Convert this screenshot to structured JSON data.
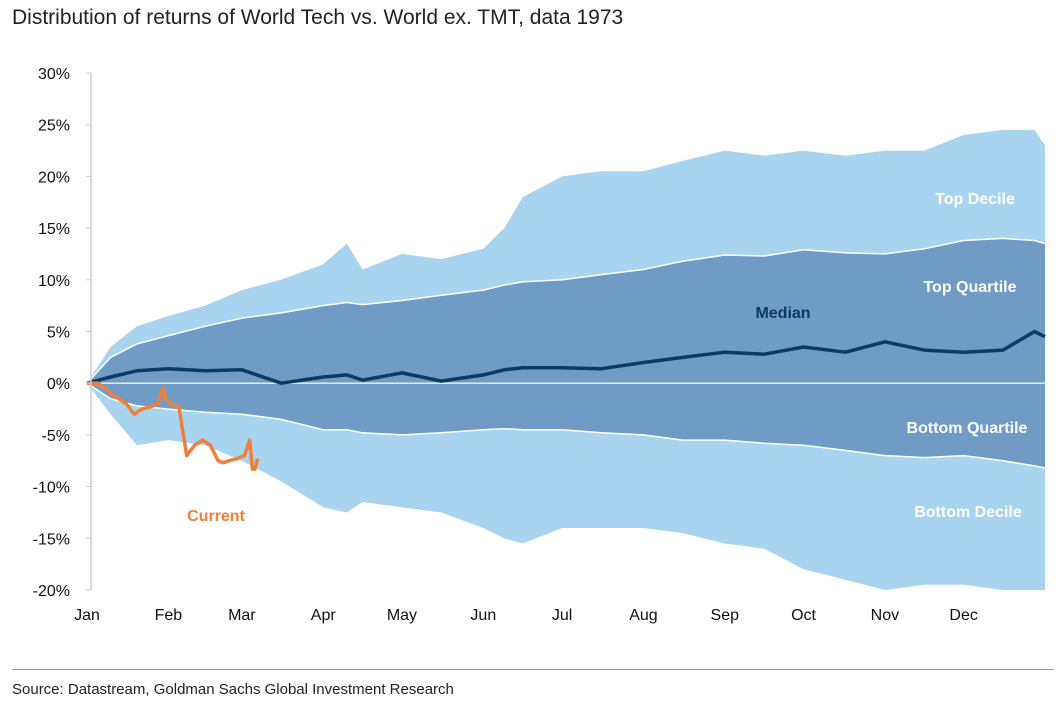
{
  "chart_data": {
    "type": "area",
    "title": "Distribution of returns of World Tech vs. World ex. TMT, data 1973",
    "source": "Source: Datastream, Goldman Sachs Global Investment Research",
    "xlabel": "",
    "ylabel": "",
    "x_unit": "day of year",
    "xlim": [
      1,
      366
    ],
    "ylim": [
      -20,
      30
    ],
    "y_ticks": [
      30,
      25,
      20,
      15,
      10,
      5,
      0,
      -5,
      -10,
      -15,
      -20
    ],
    "y_tick_labels": [
      "30%",
      "25%",
      "20%",
      "15%",
      "10%",
      "5%",
      "0%",
      "-5%",
      "-10%",
      "-15%",
      "-20%"
    ],
    "x_ticks": [
      1,
      32,
      60,
      91,
      121,
      152,
      182,
      213,
      244,
      274,
      305,
      335
    ],
    "x_tick_labels": [
      "Jan",
      "Feb",
      "Mar",
      "Apr",
      "May",
      "Jun",
      "Jul",
      "Aug",
      "Sep",
      "Oct",
      "Nov",
      "Dec"
    ],
    "grid": false,
    "colors": {
      "decile_band": "#a8d4ef",
      "quartile_band": "#6f9bc5",
      "median": "#0c3a66",
      "current": "#f07f3a",
      "label_light": "#ffffff"
    },
    "x": [
      1,
      10,
      20,
      32,
      46,
      60,
      75,
      91,
      100,
      106,
      121,
      136,
      152,
      160,
      167,
      182,
      197,
      213,
      228,
      244,
      259,
      274,
      290,
      305,
      320,
      335,
      350,
      362,
      366
    ],
    "series": [
      {
        "name": "Top Decile",
        "values": [
          0,
          3.5,
          5.5,
          6.5,
          7.5,
          9,
          10,
          11.5,
          13.5,
          11,
          12.5,
          12,
          13,
          15,
          18,
          20,
          20.5,
          20.5,
          21.5,
          22.5,
          22,
          22.5,
          22,
          22.5,
          22.5,
          24,
          24.5,
          24.5,
          23
        ]
      },
      {
        "name": "Top Quartile",
        "values": [
          0,
          2.5,
          3.8,
          4.6,
          5.5,
          6.3,
          6.8,
          7.5,
          7.8,
          7.6,
          8,
          8.5,
          9,
          9.5,
          9.8,
          10,
          10.5,
          11,
          11.8,
          12.4,
          12.3,
          12.9,
          12.6,
          12.5,
          13,
          13.8,
          14,
          13.8,
          13.5
        ]
      },
      {
        "name": "Median",
        "values": [
          0,
          0.6,
          1.2,
          1.4,
          1.2,
          1.3,
          0,
          0.6,
          0.8,
          0.3,
          1,
          0.2,
          0.8,
          1.3,
          1.5,
          1.5,
          1.4,
          2,
          2.5,
          3,
          2.8,
          3.5,
          3,
          4,
          3.2,
          3,
          3.2,
          5,
          4.5
        ]
      },
      {
        "name": "Bottom Quartile",
        "values": [
          0,
          -1.5,
          -2.2,
          -2.5,
          -2.8,
          -3,
          -3.5,
          -4.5,
          -4.5,
          -4.8,
          -5,
          -4.8,
          -4.5,
          -4.4,
          -4.5,
          -4.5,
          -4.8,
          -5,
          -5.5,
          -5.5,
          -5.8,
          -6,
          -6.5,
          -7,
          -7.2,
          -7,
          -7.5,
          -8,
          -8.2
        ]
      },
      {
        "name": "Bottom Decile",
        "values": [
          0,
          -3,
          -6,
          -5.5,
          -6,
          -7.5,
          -9.5,
          -12,
          -12.5,
          -11.5,
          -12,
          -12.5,
          -14,
          -15,
          -15.5,
          -14,
          -14,
          -14,
          -14.5,
          -15.5,
          -16,
          -18,
          -19,
          -20,
          -19.5,
          -19.5,
          -20,
          -20,
          -20
        ]
      }
    ],
    "current": {
      "name": "Current",
      "x": [
        1,
        5,
        8,
        10,
        13,
        16,
        19,
        22,
        25,
        28,
        30,
        31,
        33,
        36,
        39,
        42,
        45,
        48,
        51,
        53,
        55,
        58,
        61,
        63,
        64,
        65,
        66
      ],
      "values": [
        0,
        0,
        -0.5,
        -1,
        -1.5,
        -2,
        -3,
        -2.5,
        -2.3,
        -2,
        -0.5,
        -1.5,
        -2,
        -2.3,
        -7,
        -6,
        -5.5,
        -6,
        -7.5,
        -7.7,
        -7.5,
        -7.3,
        -7,
        -5.5,
        -8.3,
        -8.3,
        -7.3
      ]
    },
    "annotations": [
      "Top Decile",
      "Top Quartile",
      "Median",
      "Bottom Quartile",
      "Bottom Decile",
      "Current"
    ]
  }
}
